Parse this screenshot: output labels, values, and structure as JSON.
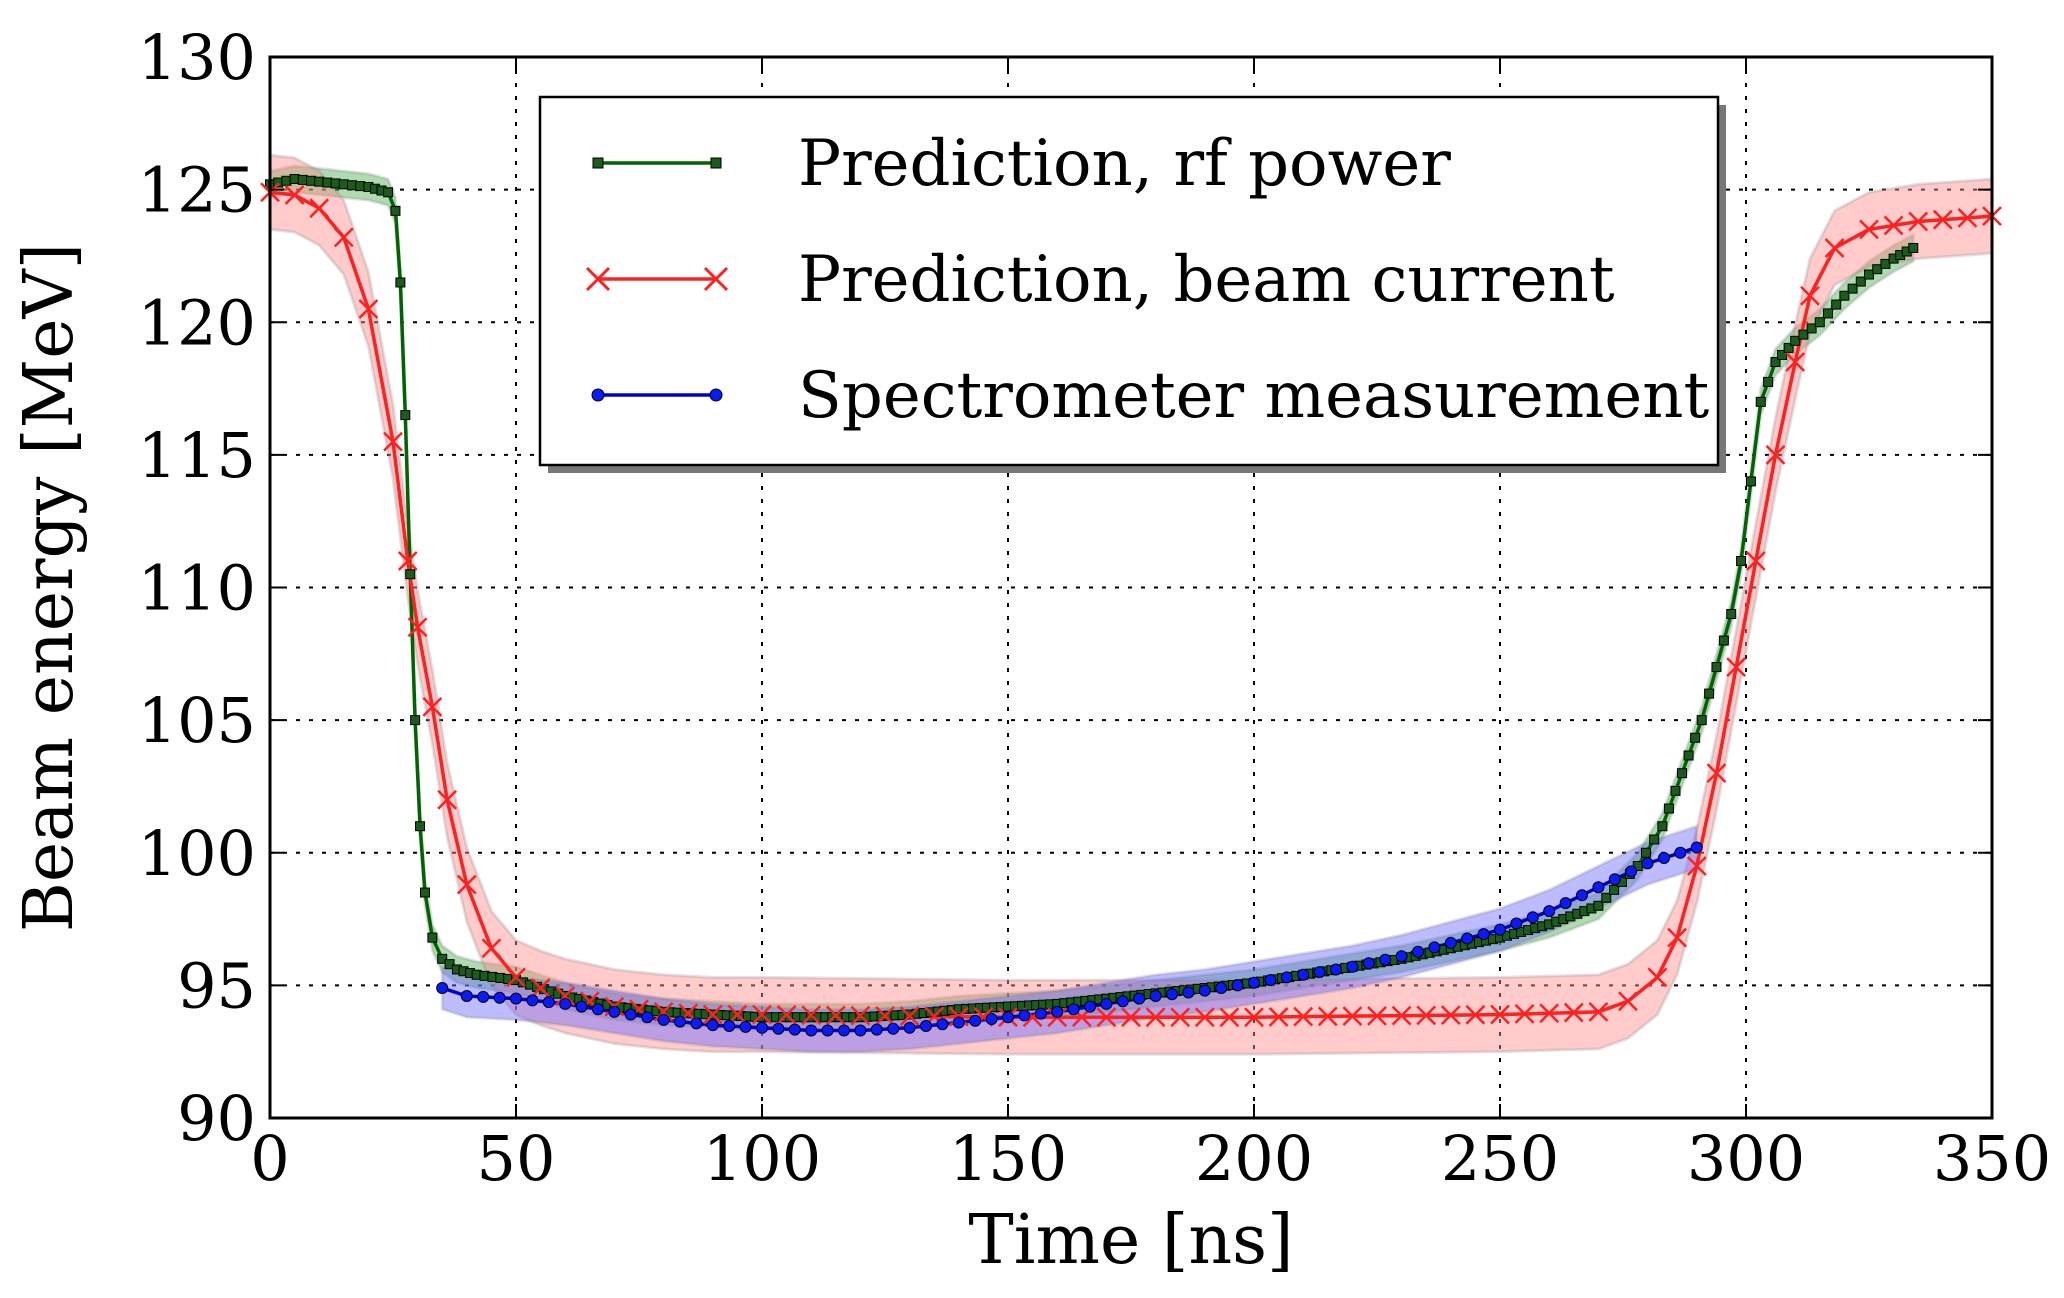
{
  "chart_data": {
    "type": "line",
    "xlabel": "Time [ns]",
    "ylabel": "Beam energy [MeV]",
    "xlim": [
      0,
      350
    ],
    "ylim": [
      90,
      130
    ],
    "xticks": [
      0,
      50,
      100,
      150,
      200,
      250,
      300,
      350
    ],
    "yticks": [
      90,
      95,
      100,
      105,
      110,
      115,
      120,
      125,
      130
    ],
    "grid": true,
    "legend_position": "top-center",
    "series": [
      {
        "name": "Prediction, rf power",
        "color": "#006400",
        "marker": "square",
        "band_color": "#4caf50",
        "band_halfwidth": 0.5,
        "points": [
          [
            0,
            125.2
          ],
          [
            5,
            125.4
          ],
          [
            10,
            125.3
          ],
          [
            15,
            125.2
          ],
          [
            20,
            125.1
          ],
          [
            24,
            124.9
          ],
          [
            25.5,
            124.2
          ],
          [
            26.5,
            121.5
          ],
          [
            27.5,
            116.5
          ],
          [
            28.5,
            110.5
          ],
          [
            29.5,
            105
          ],
          [
            30.5,
            101
          ],
          [
            31.5,
            98.5
          ],
          [
            33,
            96.8
          ],
          [
            35,
            96
          ],
          [
            38,
            95.6
          ],
          [
            42,
            95.4
          ],
          [
            50,
            95.2
          ],
          [
            60,
            94.6
          ],
          [
            70,
            94.2
          ],
          [
            80,
            94.0
          ],
          [
            90,
            93.9
          ],
          [
            100,
            93.8
          ],
          [
            110,
            93.8
          ],
          [
            120,
            93.8
          ],
          [
            130,
            93.9
          ],
          [
            140,
            94.1
          ],
          [
            150,
            94.2
          ],
          [
            160,
            94.3
          ],
          [
            170,
            94.5
          ],
          [
            180,
            94.7
          ],
          [
            190,
            94.9
          ],
          [
            200,
            95.1
          ],
          [
            210,
            95.4
          ],
          [
            220,
            95.7
          ],
          [
            230,
            96.0
          ],
          [
            240,
            96.4
          ],
          [
            250,
            96.8
          ],
          [
            260,
            97.3
          ],
          [
            270,
            98.0
          ],
          [
            278,
            99.5
          ],
          [
            283,
            101
          ],
          [
            287,
            103
          ],
          [
            291,
            105
          ],
          [
            294,
            107
          ],
          [
            297,
            109
          ],
          [
            299,
            111
          ],
          [
            301,
            114
          ],
          [
            303,
            117
          ],
          [
            306,
            118.5
          ],
          [
            310,
            119.3
          ],
          [
            315,
            120
          ],
          [
            320,
            121
          ],
          [
            325,
            121.8
          ],
          [
            330,
            122.4
          ],
          [
            334,
            122.8
          ]
        ]
      },
      {
        "name": "Prediction, beam current",
        "color": "#ff2020",
        "marker": "x",
        "band_color": "#ff8c8c",
        "band_halfwidth": 1.4,
        "points": [
          [
            0,
            124.9
          ],
          [
            5,
            124.8
          ],
          [
            10,
            124.3
          ],
          [
            15,
            123.2
          ],
          [
            20,
            120.5
          ],
          [
            25,
            115.5
          ],
          [
            28,
            111
          ],
          [
            30,
            108.5
          ],
          [
            33,
            105.5
          ],
          [
            36,
            102
          ],
          [
            40,
            98.8
          ],
          [
            45,
            96.4
          ],
          [
            50,
            95.3
          ],
          [
            55,
            94.9
          ],
          [
            60,
            94.6
          ],
          [
            70,
            94.2
          ],
          [
            80,
            94.0
          ],
          [
            90,
            93.9
          ],
          [
            100,
            93.9
          ],
          [
            150,
            93.8
          ],
          [
            200,
            93.8
          ],
          [
            250,
            93.9
          ],
          [
            270,
            94.0
          ],
          [
            276,
            94.4
          ],
          [
            282,
            95.3
          ],
          [
            286,
            96.8
          ],
          [
            290,
            99.5
          ],
          [
            294,
            103
          ],
          [
            298,
            107
          ],
          [
            302,
            111
          ],
          [
            306,
            115
          ],
          [
            310,
            118.5
          ],
          [
            313,
            121
          ],
          [
            318,
            122.8
          ],
          [
            325,
            123.5
          ],
          [
            335,
            123.8
          ],
          [
            350,
            124.0
          ]
        ]
      },
      {
        "name": "Spectrometer measurement",
        "color": "#0000cc",
        "marker": "circle",
        "band_color": "#6b6bff",
        "band_halfwidth": 0.8,
        "points": [
          [
            35,
            94.9
          ],
          [
            40,
            94.6
          ],
          [
            50,
            94.5
          ],
          [
            60,
            94.3
          ],
          [
            70,
            94.0
          ],
          [
            80,
            93.7
          ],
          [
            90,
            93.5
          ],
          [
            100,
            93.4
          ],
          [
            110,
            93.3
          ],
          [
            120,
            93.3
          ],
          [
            130,
            93.4
          ],
          [
            140,
            93.6
          ],
          [
            150,
            93.8
          ],
          [
            160,
            94.0
          ],
          [
            170,
            94.3
          ],
          [
            180,
            94.6
          ],
          [
            190,
            94.8
          ],
          [
            200,
            95.1
          ],
          [
            210,
            95.4
          ],
          [
            220,
            95.7
          ],
          [
            230,
            96.1
          ],
          [
            240,
            96.6
          ],
          [
            250,
            97.1
          ],
          [
            260,
            97.8
          ],
          [
            270,
            98.7
          ],
          [
            280,
            99.6
          ],
          [
            290,
            100.2
          ]
        ]
      }
    ]
  }
}
